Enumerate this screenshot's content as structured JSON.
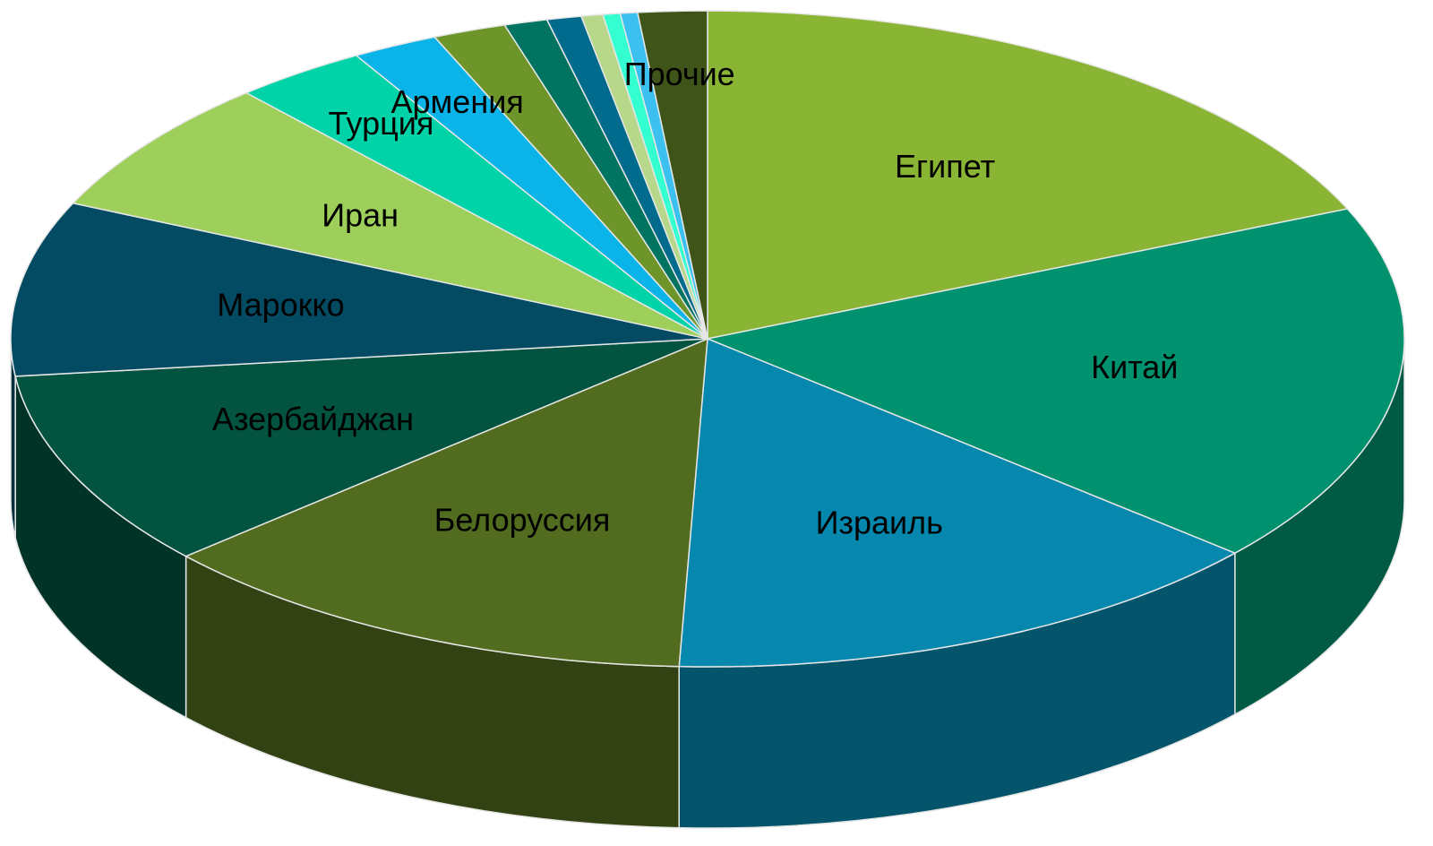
{
  "chart_data": {
    "type": "pie3d",
    "categories": [
      "Египет",
      "Китай",
      "Израиль",
      "Белоруссия",
      "Азербайджан",
      "Марокко",
      "Иран",
      "Турция",
      "Армения",
      null,
      null,
      null,
      null,
      null,
      null,
      "Прочие"
    ],
    "values": [
      18.5,
      17.8,
      14.3,
      12.8,
      9.7,
      8.6,
      6.7,
      3.1,
      2.0,
      1.7,
      1.0,
      0.8,
      0.5,
      0.4,
      0.4,
      1.6
    ],
    "colors": [
      "#8ab534",
      "#00916e",
      "#0687ae",
      "#516b1f",
      "#02533f",
      "#034b63",
      "#9ecf5a",
      "#00d3a8",
      "#0ab4e8",
      "#6e9529",
      "#007460",
      "#006b8d",
      "#b7d88a",
      "#33ffd0",
      "#3cc0f0",
      "#3f5418"
    ]
  }
}
